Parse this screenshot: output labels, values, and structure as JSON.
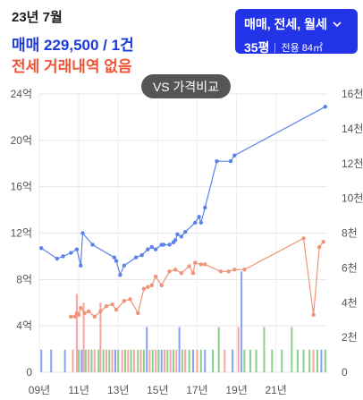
{
  "header": {
    "date": "23년 7월",
    "sale_text": "매매 229,500 / 1건",
    "jeonse_text": "전세 거래내역 없음"
  },
  "filter": {
    "types_label": "매매, 전세, 월세",
    "pyeong_label": "35평",
    "area_label": "전용 84㎡",
    "chevron_icon": "chevron-down-icon"
  },
  "compare_button": {
    "label": "VS 가격비교"
  },
  "colors": {
    "sale": "#5b82e8",
    "jeonse": "#f09378",
    "volume_sale": "#8b9ef5",
    "volume_jeonse": "#f5a5a5",
    "volume_monthly": "#8ad08a"
  },
  "chart_data": {
    "type": "line",
    "title": "",
    "xlabel": "",
    "ylabel": "",
    "x_ticks": [
      "09년",
      "11년",
      "13년",
      "15년",
      "17년",
      "19년",
      "21년"
    ],
    "xlim": [
      2009.0,
      2023.6
    ],
    "y_left_ticks": [
      "0",
      "4억",
      "8억",
      "12억",
      "16억",
      "20억",
      "24억"
    ],
    "y_left_range": [
      0,
      24
    ],
    "y_right_ticks": [
      "0",
      "2천",
      "4천",
      "6천",
      "8천",
      "10천",
      "12천",
      "14천",
      "16천"
    ],
    "y_right_range": [
      0,
      16
    ],
    "series": [
      {
        "key": "sale",
        "x": [
          2009.1,
          2009.9,
          2010.2,
          2010.6,
          2010.9,
          2011.1,
          2011.2,
          2011.7,
          2012.8,
          2012.9,
          2013.1,
          2013.3,
          2013.9,
          2014.2,
          2014.5,
          2014.7,
          2014.9,
          2015.2,
          2015.3,
          2015.6,
          2015.8,
          2015.9,
          2016.0,
          2016.2,
          2016.4,
          2016.9,
          2017.1,
          2017.2,
          2017.4,
          2018.0,
          2018.7,
          2018.9,
          2023.5
        ],
        "y": [
          10.7,
          9.8,
          10.0,
          10.3,
          10.6,
          9.2,
          12.0,
          11.0,
          9.9,
          9.6,
          8.4,
          9.2,
          9.9,
          10.1,
          10.6,
          10.8,
          10.6,
          11.0,
          11.0,
          11.0,
          11.2,
          11.4,
          11.9,
          11.7,
          12.1,
          12.9,
          13.4,
          12.9,
          14.2,
          18.2,
          18.2,
          18.7,
          22.9
        ],
        "unit": "억"
      },
      {
        "key": "jeonse",
        "x": [
          2010.6,
          2010.8,
          2010.9,
          2011.0,
          2011.1,
          2011.3,
          2011.5,
          2011.8,
          2012.1,
          2012.4,
          2012.7,
          2012.9,
          2013.3,
          2013.6,
          2014.0,
          2014.3,
          2014.5,
          2014.7,
          2014.9,
          2015.2,
          2015.6,
          2015.9,
          2016.2,
          2016.6,
          2016.8,
          2016.9,
          2017.2,
          2017.4,
          2018.2,
          2018.6,
          2018.9,
          2019.4,
          2022.4,
          2022.9,
          2023.2,
          2023.4
        ],
        "y": [
          3.2,
          3.2,
          3.4,
          3.3,
          3.7,
          3.4,
          3.5,
          3.2,
          3.5,
          3.8,
          3.9,
          3.6,
          4.1,
          4.2,
          3.4,
          4.8,
          4.9,
          5.0,
          5.5,
          5.0,
          5.8,
          5.9,
          5.7,
          6.1,
          5.7,
          6.3,
          6.2,
          6.2,
          5.8,
          5.8,
          5.9,
          5.9,
          7.7,
          3.3,
          7.2,
          7.5
        ],
        "unit": "천"
      }
    ],
    "volume_bars": [
      {
        "x": 2009.1,
        "h": 1.3,
        "s": "sale"
      },
      {
        "x": 2009.6,
        "h": 1.3,
        "s": "sale"
      },
      {
        "x": 2010.3,
        "h": 1.3,
        "s": "sale"
      },
      {
        "x": 2010.7,
        "h": 1.3,
        "s": "jeonse"
      },
      {
        "x": 2010.9,
        "h": 4.5,
        "s": "jeonse"
      },
      {
        "x": 2011.0,
        "h": 1.3,
        "s": "monthly"
      },
      {
        "x": 2011.15,
        "h": 1.3,
        "s": "sale"
      },
      {
        "x": 2011.25,
        "h": 4.0,
        "s": "jeonse"
      },
      {
        "x": 2011.35,
        "h": 1.3,
        "s": "monthly"
      },
      {
        "x": 2011.5,
        "h": 1.3,
        "s": "jeonse"
      },
      {
        "x": 2011.65,
        "h": 1.3,
        "s": "monthly"
      },
      {
        "x": 2011.8,
        "h": 1.3,
        "s": "jeonse"
      },
      {
        "x": 2012.0,
        "h": 1.3,
        "s": "monthly"
      },
      {
        "x": 2012.1,
        "h": 4.0,
        "s": "jeonse"
      },
      {
        "x": 2012.25,
        "h": 1.3,
        "s": "monthly"
      },
      {
        "x": 2012.4,
        "h": 1.3,
        "s": "jeonse"
      },
      {
        "x": 2012.55,
        "h": 1.3,
        "s": "monthly"
      },
      {
        "x": 2012.7,
        "h": 1.3,
        "s": "jeonse"
      },
      {
        "x": 2012.85,
        "h": 1.3,
        "s": "sale"
      },
      {
        "x": 2013.0,
        "h": 1.3,
        "s": "monthly"
      },
      {
        "x": 2013.2,
        "h": 1.3,
        "s": "jeonse"
      },
      {
        "x": 2013.35,
        "h": 1.3,
        "s": "monthly"
      },
      {
        "x": 2013.5,
        "h": 1.3,
        "s": "jeonse"
      },
      {
        "x": 2013.65,
        "h": 1.3,
        "s": "monthly"
      },
      {
        "x": 2013.8,
        "h": 1.3,
        "s": "jeonse"
      },
      {
        "x": 2014.0,
        "h": 1.3,
        "s": "monthly"
      },
      {
        "x": 2014.15,
        "h": 1.3,
        "s": "jeonse"
      },
      {
        "x": 2014.3,
        "h": 1.3,
        "s": "monthly"
      },
      {
        "x": 2014.45,
        "h": 2.6,
        "s": "sale"
      },
      {
        "x": 2014.6,
        "h": 1.3,
        "s": "jeonse"
      },
      {
        "x": 2014.75,
        "h": 1.3,
        "s": "monthly"
      },
      {
        "x": 2014.9,
        "h": 1.3,
        "s": "jeonse"
      },
      {
        "x": 2015.05,
        "h": 1.3,
        "s": "monthly"
      },
      {
        "x": 2015.2,
        "h": 1.3,
        "s": "sale"
      },
      {
        "x": 2015.35,
        "h": 1.3,
        "s": "jeonse"
      },
      {
        "x": 2015.5,
        "h": 1.3,
        "s": "monthly"
      },
      {
        "x": 2015.65,
        "h": 1.3,
        "s": "jeonse"
      },
      {
        "x": 2015.8,
        "h": 1.3,
        "s": "monthly"
      },
      {
        "x": 2015.95,
        "h": 1.3,
        "s": "jeonse"
      },
      {
        "x": 2016.1,
        "h": 2.6,
        "s": "sale"
      },
      {
        "x": 2016.25,
        "h": 1.3,
        "s": "monthly"
      },
      {
        "x": 2016.4,
        "h": 1.3,
        "s": "jeonse"
      },
      {
        "x": 2016.6,
        "h": 1.3,
        "s": "monthly"
      },
      {
        "x": 2016.8,
        "h": 1.3,
        "s": "sale"
      },
      {
        "x": 2017.0,
        "h": 1.3,
        "s": "jeonse"
      },
      {
        "x": 2017.2,
        "h": 1.3,
        "s": "monthly"
      },
      {
        "x": 2017.4,
        "h": 1.3,
        "s": "sale"
      },
      {
        "x": 2017.8,
        "h": 1.3,
        "s": "monthly"
      },
      {
        "x": 2018.1,
        "h": 2.6,
        "s": "monthly"
      },
      {
        "x": 2018.4,
        "h": 1.3,
        "s": "jeonse"
      },
      {
        "x": 2018.8,
        "h": 1.3,
        "s": "sale"
      },
      {
        "x": 2019.1,
        "h": 2.6,
        "s": "jeonse"
      },
      {
        "x": 2019.25,
        "h": 5.8,
        "s": "sale"
      },
      {
        "x": 2019.4,
        "h": 1.3,
        "s": "monthly"
      },
      {
        "x": 2019.7,
        "h": 1.3,
        "s": "monthly"
      },
      {
        "x": 2020.0,
        "h": 1.3,
        "s": "monthly"
      },
      {
        "x": 2020.4,
        "h": 2.6,
        "s": "monthly"
      },
      {
        "x": 2020.8,
        "h": 1.3,
        "s": "monthly"
      },
      {
        "x": 2021.3,
        "h": 1.3,
        "s": "monthly"
      },
      {
        "x": 2021.8,
        "h": 2.6,
        "s": "monthly"
      },
      {
        "x": 2022.1,
        "h": 1.3,
        "s": "monthly"
      },
      {
        "x": 2022.4,
        "h": 1.3,
        "s": "monthly"
      },
      {
        "x": 2022.7,
        "h": 1.3,
        "s": "monthly"
      },
      {
        "x": 2022.9,
        "h": 1.3,
        "s": "jeonse"
      },
      {
        "x": 2023.1,
        "h": 1.3,
        "s": "monthly"
      },
      {
        "x": 2023.3,
        "h": 1.3,
        "s": "sale"
      },
      {
        "x": 2023.5,
        "h": 1.3,
        "s": "monthly"
      }
    ],
    "grid": true,
    "legend": "none"
  }
}
